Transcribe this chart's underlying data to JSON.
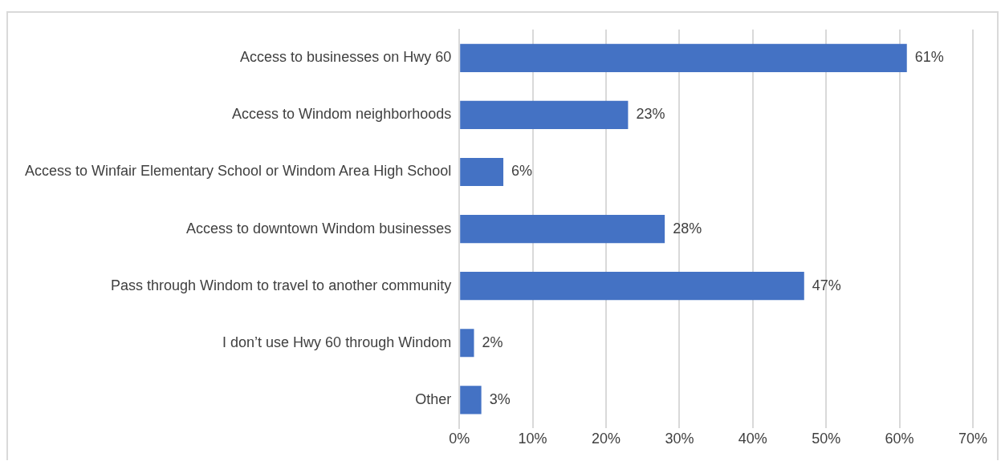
{
  "chart_data": {
    "type": "bar",
    "orientation": "horizontal",
    "categories": [
      "Access to businesses on Hwy 60",
      "Access to Windom neighborhoods",
      "Access to Winfair Elementary School or Windom Area High School",
      "Access to downtown Windom businesses",
      "Pass through Windom to travel to another community",
      "I don’t use Hwy 60 through Windom",
      "Other"
    ],
    "values": [
      61,
      23,
      6,
      28,
      47,
      2,
      3
    ],
    "value_labels": [
      "61%",
      "23%",
      "6%",
      "28%",
      "47%",
      "2%",
      "3%"
    ],
    "color": "#4472c4",
    "xlim": [
      0,
      70
    ],
    "xticks": [
      {
        "value": 0,
        "label": "0%"
      },
      {
        "value": 10,
        "label": "10%"
      },
      {
        "value": 20,
        "label": "20%"
      },
      {
        "value": 30,
        "label": "30%"
      },
      {
        "value": 40,
        "label": "40%"
      },
      {
        "value": 50,
        "label": "50%"
      },
      {
        "value": 60,
        "label": "60%"
      },
      {
        "value": 70,
        "label": "70%"
      }
    ],
    "grid": "x",
    "legend": false
  }
}
